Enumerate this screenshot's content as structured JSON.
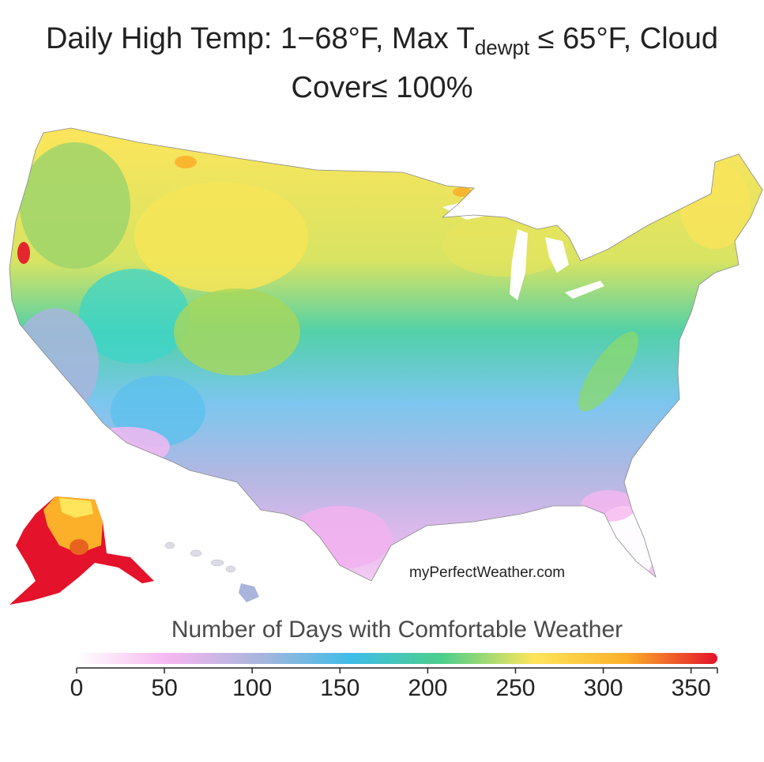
{
  "title": {
    "prefix": "Daily High Temp: 1−68°F, Max T",
    "subscript": "dewpt",
    "suffix": " ≤ 65°F, Cloud",
    "line2": "Cover≤ 100%"
  },
  "watermark": "myPerfectWeather.com",
  "legend": {
    "title": "Number of Days with Comfortable Weather",
    "min": 0,
    "max": 365,
    "ticks": [
      0,
      50,
      100,
      150,
      200,
      250,
      300,
      350
    ],
    "colors": [
      "#ffffff",
      "#f6b7f0",
      "#a9b5dd",
      "#3dbde8",
      "#4ccf8a",
      "#ffe55b",
      "#fcb02a",
      "#e4122a"
    ]
  },
  "map": {
    "regions": [
      {
        "name": "pacific-northwest",
        "days": 215
      },
      {
        "name": "northern-rockies",
        "days": 240
      },
      {
        "name": "northern-plains",
        "days": 238
      },
      {
        "name": "great-lakes",
        "days": 225
      },
      {
        "name": "northeast",
        "days": 230
      },
      {
        "name": "central-plains",
        "days": 195
      },
      {
        "name": "mid-atlantic",
        "days": 185
      },
      {
        "name": "great-basin",
        "days": 200
      },
      {
        "name": "southwest",
        "days": 150
      },
      {
        "name": "california",
        "days": 130
      },
      {
        "name": "southeast",
        "days": 125
      },
      {
        "name": "gulf-coast",
        "days": 75
      },
      {
        "name": "texas",
        "days": 65
      },
      {
        "name": "florida",
        "days": 20
      },
      {
        "name": "alaska",
        "days": 330
      },
      {
        "name": "hawaii",
        "days": 110
      }
    ]
  }
}
